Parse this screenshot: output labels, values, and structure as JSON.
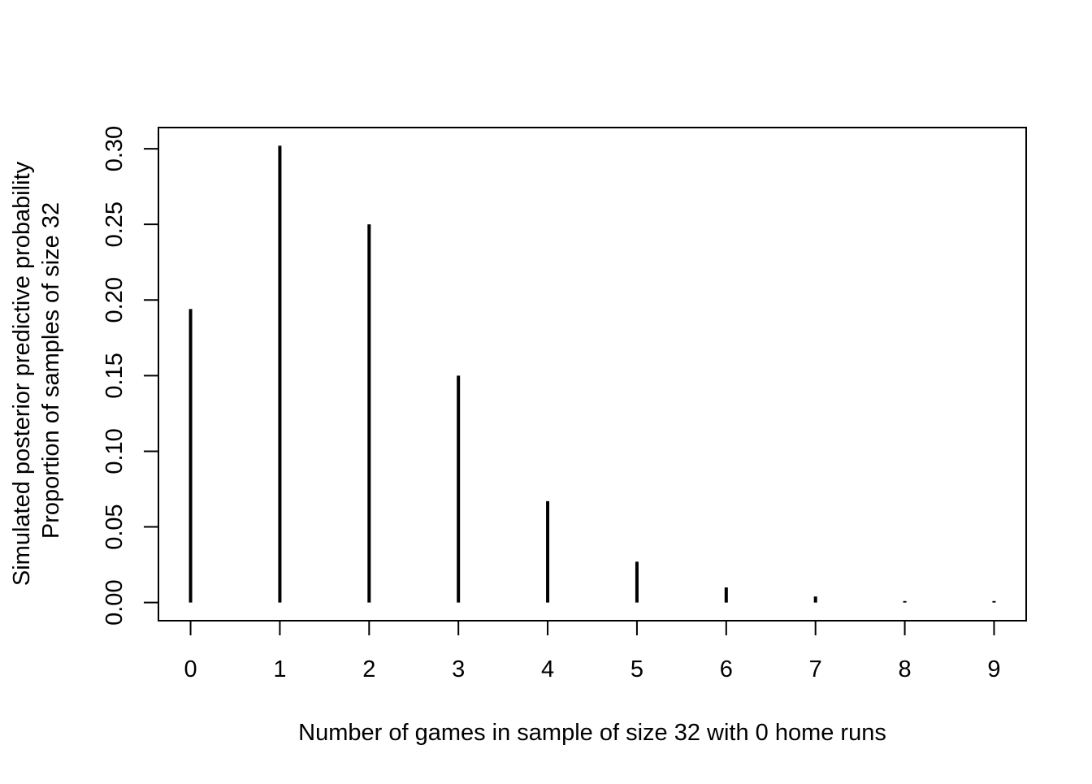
{
  "chart_data": {
    "type": "bar",
    "title": "",
    "xlabel": "Number of games in sample of size 32 with 0 home runs",
    "ylabel_lines": [
      "Simulated posterior predictive probability",
      "Proportion of samples of size 32"
    ],
    "categories": [
      "0",
      "1",
      "2",
      "3",
      "4",
      "5",
      "6",
      "7",
      "8",
      "9"
    ],
    "x": [
      0,
      1,
      2,
      3,
      4,
      5,
      6,
      7,
      8,
      9
    ],
    "values": [
      0.194,
      0.302,
      0.25,
      0.15,
      0.067,
      0.027,
      0.01,
      0.004,
      0.001,
      0.001
    ],
    "xlim": [
      -0.36,
      9.36
    ],
    "ylim": [
      -0.012,
      0.314
    ],
    "yticks": [
      0.0,
      0.05,
      0.1,
      0.15,
      0.2,
      0.25,
      0.3
    ],
    "ytick_labels": [
      "0.00",
      "0.05",
      "0.10",
      "0.15",
      "0.20",
      "0.25",
      "0.30"
    ],
    "grid": false,
    "bar_color": "#000000"
  }
}
